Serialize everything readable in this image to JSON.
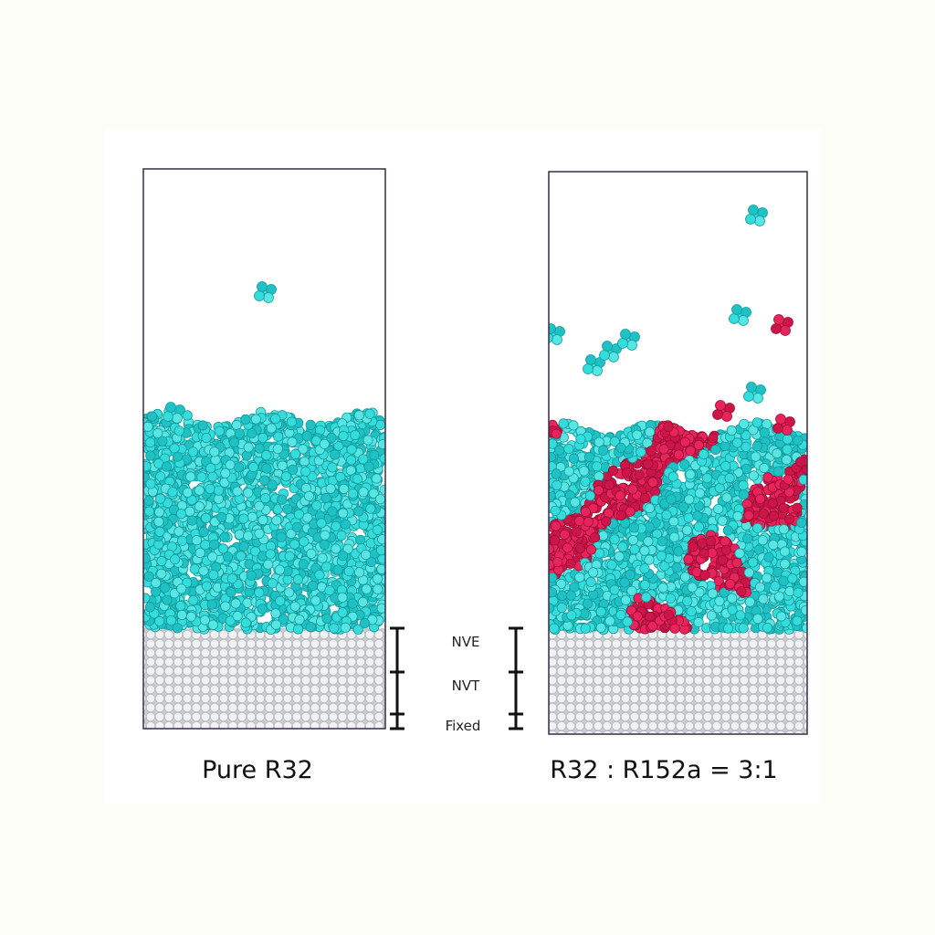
{
  "panels": [
    {
      "label": "Pure R32"
    },
    {
      "label": "R32 : R152a = 3:1"
    }
  ],
  "regions": {
    "nve": "NVE",
    "nvt": "NVT",
    "fixed": "Fixed"
  }
}
